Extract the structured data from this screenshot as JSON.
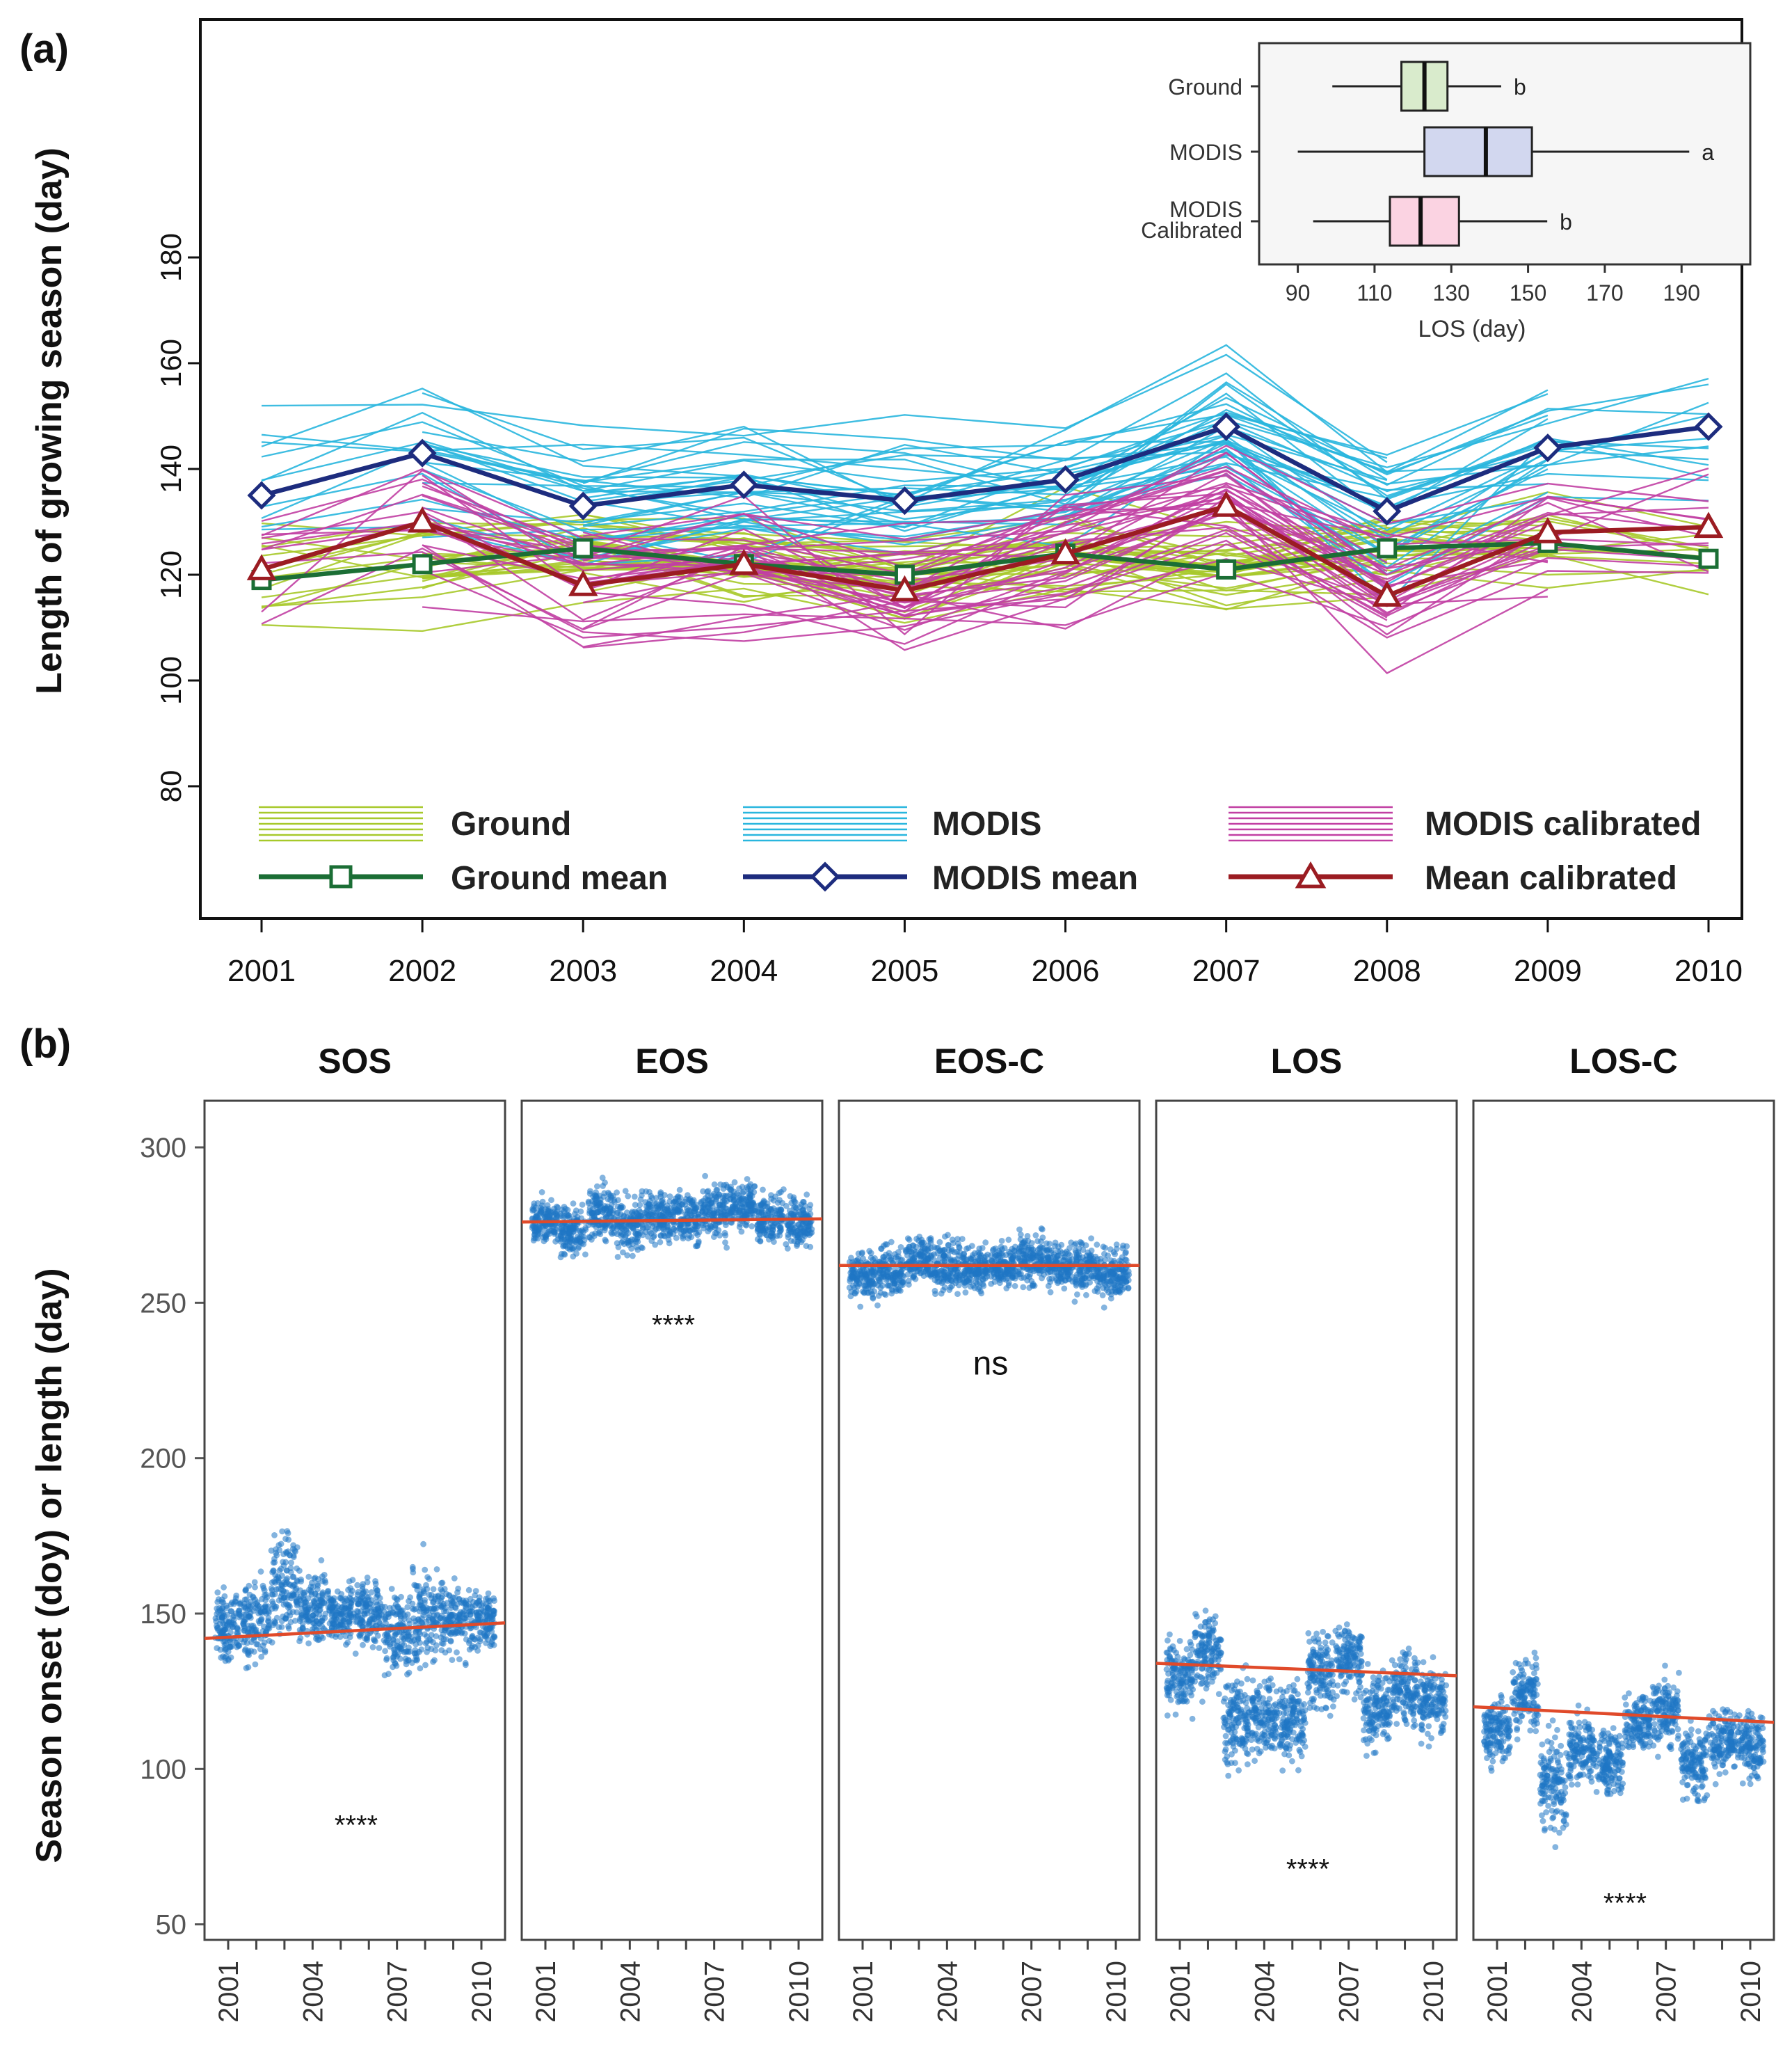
{
  "chart_data": [
    {
      "panel": "(a)",
      "type": "line",
      "ylabel": "Length of growing season (day)",
      "xlabel": "",
      "x": [
        2001,
        2002,
        2003,
        2004,
        2005,
        2006,
        2007,
        2008,
        2009,
        2010
      ],
      "ylim": [
        55,
        225
      ],
      "yticks": [
        80,
        100,
        120,
        140,
        160,
        180
      ],
      "series": [
        {
          "name": "Ground mean",
          "color": "#1b6e35",
          "marker": "square",
          "values": [
            119,
            122,
            125,
            122,
            120,
            124,
            121,
            125,
            126,
            123
          ]
        },
        {
          "name": "MODIS mean",
          "color": "#1d2c7e",
          "marker": "diamond",
          "values": [
            135,
            143,
            133,
            137,
            134,
            138,
            148,
            132,
            144,
            148
          ]
        },
        {
          "name": "Mean calibrated",
          "color": "#9b1c22",
          "marker": "triangle",
          "values": [
            121,
            130,
            118,
            122,
            117,
            124,
            133,
            116,
            128,
            129
          ]
        }
      ],
      "background_groups": [
        {
          "name": "Ground",
          "color": "#a7c92a"
        },
        {
          "name": "MODIS",
          "color": "#29b6de"
        },
        {
          "name": "MODIS calibrated",
          "color": "#c13fa3"
        }
      ],
      "legend": {
        "position": "bottom",
        "entries": [
          "Ground",
          "MODIS",
          "MODIS calibrated",
          "Ground mean",
          "MODIS mean",
          "Mean calibrated"
        ]
      },
      "inset": {
        "type": "boxplot",
        "xlabel": "LOS (day)",
        "xlim": [
          85,
          205
        ],
        "xticks": [
          90,
          110,
          130,
          150,
          170,
          190
        ],
        "boxes": [
          {
            "label": "Ground",
            "min": 99,
            "q1": 117,
            "median": 123,
            "q3": 129,
            "max": 143,
            "letter": "b",
            "color": "#d9ebcc"
          },
          {
            "label": "MODIS",
            "min": 90,
            "q1": 123,
            "median": 139,
            "q3": 151,
            "max": 192,
            "letter": "a",
            "color": "#d2d7ef"
          },
          {
            "label": "MODIS\nCalibrated",
            "min": 94,
            "q1": 114,
            "median": 122,
            "q3": 132,
            "max": 155,
            "letter": "b",
            "color": "#fbd3e2"
          }
        ]
      }
    },
    {
      "panel": "(b)",
      "type": "scatter",
      "ylabel": "Season onset (doy) or length (day)",
      "ylim": [
        45,
        315
      ],
      "yticks": [
        50,
        100,
        150,
        200,
        250,
        300
      ],
      "x": [
        2001,
        2002,
        2003,
        2004,
        2005,
        2006,
        2007,
        2008,
        2009,
        2010
      ],
      "xticks": [
        2001,
        2004,
        2007,
        2010
      ],
      "point_color": "#1f77c4",
      "trend_color": "#e04a2a",
      "facets": [
        {
          "title": "SOS",
          "annotation": "****",
          "annotation_y": 82,
          "trend": [
            142,
            147
          ],
          "means": [
            146,
            148,
            160,
            152,
            150,
            150,
            143,
            149,
            149,
            148
          ],
          "spread": [
            14,
            16,
            22,
            14,
            12,
            14,
            16,
            20,
            14,
            12
          ]
        },
        {
          "title": "EOS",
          "annotation": "****",
          "annotation_y": 243,
          "trend": [
            276,
            277
          ],
          "means": [
            276,
            273,
            278,
            275,
            278,
            277,
            279,
            281,
            277,
            275
          ],
          "spread": [
            9,
            10,
            12,
            12,
            11,
            10,
            11,
            9,
            10,
            10
          ]
        },
        {
          "title": "EOS-C",
          "annotation": "ns",
          "annotation_y": 230,
          "trend": [
            262,
            262
          ],
          "means": [
            259,
            260,
            264,
            262,
            261,
            262,
            264,
            262,
            261,
            259
          ],
          "spread": [
            9,
            10,
            10,
            10,
            9,
            9,
            10,
            9,
            10,
            10
          ]
        },
        {
          "title": "LOS",
          "annotation": "****",
          "annotation_y": 68,
          "trend": [
            134,
            130
          ],
          "means": [
            130,
            138,
            115,
            117,
            115,
            132,
            135,
            118,
            125,
            122
          ],
          "spread": [
            14,
            15,
            18,
            16,
            15,
            14,
            14,
            15,
            15,
            14
          ]
        },
        {
          "title": "LOS-C",
          "annotation": "****",
          "annotation_y": 57,
          "trend": [
            120,
            115
          ],
          "means": [
            112,
            124,
            96,
            106,
            102,
            115,
            118,
            102,
            110,
            108
          ],
          "spread": [
            13,
            15,
            20,
            14,
            13,
            13,
            14,
            14,
            14,
            13
          ]
        }
      ]
    }
  ],
  "labels": {
    "panel_a": "(a)",
    "panel_b": "(b)"
  }
}
